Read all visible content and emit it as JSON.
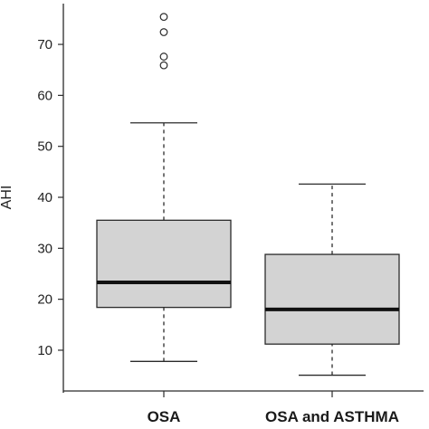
{
  "chart_data": {
    "type": "box",
    "ylabel": "AHI",
    "ylim": [
      2,
      78
    ],
    "yticks": [
      10,
      20,
      30,
      40,
      50,
      60,
      70
    ],
    "categories": [
      "OSA",
      "OSA and ASTHMA"
    ],
    "boxes": [
      {
        "category": "OSA",
        "whisker_low": 7.8,
        "q1": 18.4,
        "median": 23.3,
        "q3": 35.5,
        "whisker_high": 54.6,
        "outliers": [
          65.9,
          67.6,
          72.4,
          75.4
        ]
      },
      {
        "category": "OSA and ASTHMA",
        "whisker_low": 5.1,
        "q1": 11.2,
        "median": 18.0,
        "q3": 28.8,
        "whisker_high": 42.6,
        "outliers": []
      }
    ],
    "box_fill": "#d3d3d3",
    "line_color": "#2b2b2b",
    "grid": false
  }
}
